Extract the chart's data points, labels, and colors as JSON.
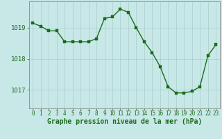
{
  "hours": [
    0,
    1,
    2,
    3,
    4,
    5,
    6,
    7,
    8,
    9,
    10,
    11,
    12,
    13,
    14,
    15,
    16,
    17,
    18,
    19,
    20,
    21,
    22,
    23
  ],
  "pressure": [
    1019.15,
    1019.05,
    1018.9,
    1018.9,
    1018.55,
    1018.55,
    1018.55,
    1018.55,
    1018.65,
    1019.3,
    1019.35,
    1019.6,
    1019.5,
    1019.0,
    1018.55,
    1018.2,
    1017.75,
    1017.1,
    1016.9,
    1016.9,
    1016.95,
    1017.1,
    1018.1,
    1018.45
  ],
  "line_color": "#1a6b1a",
  "marker_color": "#1a6b1a",
  "bg_color": "#c8e8e8",
  "grid_color": "#a8cccc",
  "xlabel": "Graphe pression niveau de la mer (hPa)",
  "ylabel_ticks": [
    1017,
    1018,
    1019
  ],
  "xlim": [
    -0.5,
    23.5
  ],
  "ylim": [
    1016.4,
    1019.85
  ],
  "xlabel_color": "#1a6b1a",
  "tick_color": "#1a6b1a",
  "axis_color": "#888888",
  "marker_size": 2.5,
  "line_width": 1.0,
  "xlabel_fontsize": 7,
  "ytick_fontsize": 6.5,
  "xtick_fontsize": 5.5
}
